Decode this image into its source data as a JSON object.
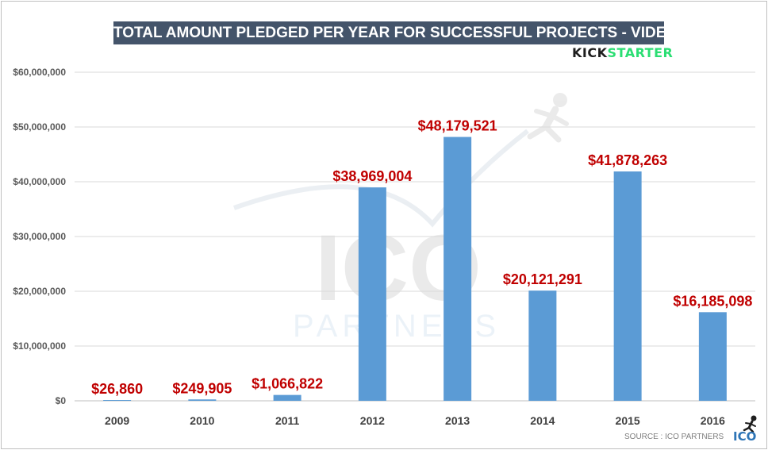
{
  "title": "TOTAL AMOUNT PLEDGED PER YEAR FOR SUCCESSFUL PROJECTS - VIDEO GAMES",
  "brand": {
    "part1": "KICK",
    "part2": "STARTER",
    "color1": "#1e1e1e",
    "color2": "#2bde73"
  },
  "source": "SOURCE : ICO PARTNERS",
  "watermark": {
    "line1": "ICO",
    "line2": "PARTNERS"
  },
  "corner_logo": {
    "text": "ICO",
    "icon": "running-man-icon"
  },
  "colors": {
    "bar": "#5b9bd5",
    "data_label": "#c00000",
    "title_bg": "#44546a",
    "grid": "#d9d9d9"
  },
  "chart_data": {
    "type": "bar",
    "title": "TOTAL AMOUNT PLEDGED PER YEAR FOR SUCCESSFUL PROJECTS - VIDEO GAMES",
    "categories": [
      "2009",
      "2010",
      "2011",
      "2012",
      "2013",
      "2014",
      "2015",
      "2016"
    ],
    "values": [
      26860,
      249905,
      1066822,
      38969004,
      48179521,
      20121291,
      41878263,
      16185098
    ],
    "data_labels": [
      "$26,860",
      "$249,905",
      "$1,066,822",
      "$38,969,004",
      "$48,179,521",
      "$20,121,291",
      "$41,878,263",
      "$16,185,098"
    ],
    "ylim": [
      0,
      60000000
    ],
    "yticks": [
      0,
      10000000,
      20000000,
      30000000,
      40000000,
      50000000,
      60000000
    ],
    "ytick_labels": [
      "$0",
      "$10,000,000",
      "$20,000,000",
      "$30,000,000",
      "$40,000,000",
      "$50,000,000",
      "$60,000,000"
    ],
    "xlabel": "",
    "ylabel": "",
    "grid": true,
    "legend": "none"
  }
}
